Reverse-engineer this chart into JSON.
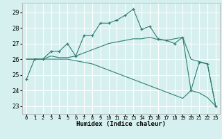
{
  "xlabel": "Humidex (Indice chaleur)",
  "bg_color": "#d6f0f0",
  "grid_color": "#ffffff",
  "line_color": "#2e7d6e",
  "xlim": [
    -0.5,
    23.5
  ],
  "ylim": [
    22.5,
    29.6
  ],
  "yticks": [
    23,
    24,
    25,
    26,
    27,
    28,
    29
  ],
  "xticks": [
    0,
    1,
    2,
    3,
    4,
    5,
    6,
    7,
    8,
    9,
    10,
    11,
    12,
    13,
    14,
    15,
    16,
    17,
    18,
    19,
    20,
    21,
    22,
    23
  ],
  "series1_x": [
    0,
    1,
    2,
    3,
    4,
    5,
    6,
    7,
    8,
    9,
    10,
    11,
    12,
    13,
    14,
    15,
    16,
    17,
    18,
    19,
    20,
    21,
    22,
    23
  ],
  "series1_y": [
    24.7,
    26.0,
    26.0,
    26.5,
    26.5,
    27.0,
    26.2,
    27.5,
    27.5,
    28.3,
    28.3,
    28.5,
    28.8,
    29.2,
    27.9,
    28.1,
    27.3,
    27.2,
    27.0,
    27.4,
    24.0,
    25.8,
    25.7,
    23.0
  ],
  "series2_x": [
    0,
    1,
    2,
    3,
    4,
    5,
    6,
    7,
    8,
    9,
    10,
    11,
    12,
    13,
    14,
    15,
    16,
    17,
    18,
    19,
    20,
    21,
    22,
    23
  ],
  "series2_y": [
    26.0,
    26.0,
    26.0,
    26.2,
    26.1,
    26.1,
    26.2,
    26.4,
    26.6,
    26.8,
    27.0,
    27.1,
    27.2,
    27.3,
    27.3,
    27.4,
    27.25,
    27.2,
    27.3,
    27.4,
    26.0,
    25.85,
    25.7,
    23.0
  ],
  "series3_x": [
    0,
    1,
    2,
    3,
    4,
    5,
    6,
    7,
    8,
    9,
    10,
    11,
    12,
    13,
    14,
    15,
    16,
    17,
    18,
    19,
    20,
    21,
    22,
    23
  ],
  "series3_y": [
    26.0,
    26.0,
    26.0,
    26.0,
    26.0,
    26.0,
    25.9,
    25.8,
    25.7,
    25.5,
    25.3,
    25.1,
    24.9,
    24.7,
    24.5,
    24.3,
    24.1,
    23.9,
    23.7,
    23.5,
    24.0,
    23.85,
    23.55,
    23.0
  ]
}
